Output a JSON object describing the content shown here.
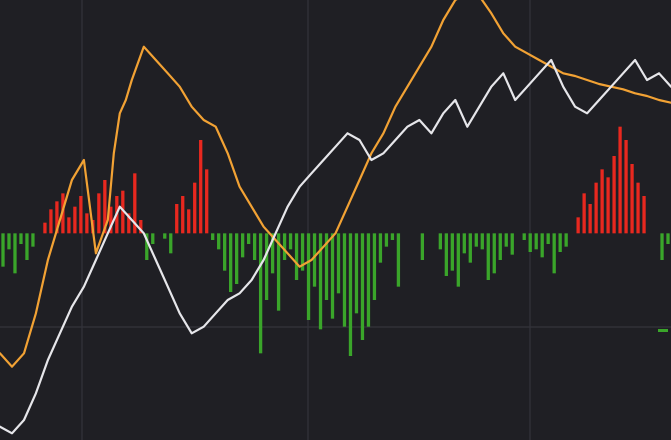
{
  "colors": {
    "background": "#1f1f24",
    "grid": "#34343b",
    "positive": "#e8281f",
    "negative": "#3aa52a",
    "orange_line": "#f2a234",
    "white_line": "#e6e6ea"
  },
  "chart_data": {
    "type": "bar",
    "title": "",
    "xlabel": "",
    "ylabel": "",
    "grid": true,
    "legend": "none",
    "x_range": [
      0,
      112
    ],
    "y_range": [
      -155,
      175
    ],
    "histogram": {
      "name": "",
      "x": [
        0,
        1,
        2,
        3,
        4,
        5,
        6,
        7,
        8,
        9,
        10,
        11,
        12,
        13,
        14,
        15,
        16,
        17,
        18,
        19,
        20,
        21,
        22,
        23,
        24,
        25,
        26,
        27,
        28,
        29,
        30,
        31,
        32,
        33,
        34,
        35,
        36,
        37,
        38,
        39,
        40,
        41,
        42,
        43,
        44,
        45,
        46,
        47,
        48,
        49,
        50,
        51,
        52,
        53,
        54,
        55,
        56,
        57,
        58,
        59,
        60,
        61,
        62,
        63,
        64,
        65,
        66,
        67,
        68,
        69,
        70,
        71,
        72,
        73,
        74,
        75,
        76,
        77,
        78,
        79,
        80,
        81,
        82,
        83,
        84,
        85,
        86,
        87,
        88,
        89,
        90,
        91,
        92,
        93,
        94,
        95,
        96,
        97,
        98,
        99,
        100,
        101,
        102,
        103,
        104,
        105,
        106,
        107,
        108,
        109,
        110,
        111
      ],
      "values": [
        -25,
        -12,
        -30,
        -8,
        -20,
        -10,
        0,
        8,
        18,
        24,
        30,
        12,
        20,
        28,
        15,
        10,
        30,
        40,
        20,
        28,
        32,
        15,
        45,
        10,
        -20,
        -8,
        0,
        -4,
        -15,
        22,
        28,
        18,
        38,
        70,
        48,
        -5,
        -12,
        -28,
        -44,
        -38,
        -18,
        -8,
        -20,
        -90,
        -50,
        -30,
        -58,
        -20,
        -12,
        -35,
        -28,
        -65,
        -40,
        -72,
        -50,
        -64,
        -45,
        -70,
        -92,
        -60,
        -80,
        -70,
        -50,
        -22,
        -10,
        -5,
        -40,
        0,
        0,
        0,
        -20,
        0,
        0,
        -12,
        -32,
        -28,
        -40,
        -15,
        -22,
        -10,
        -12,
        -35,
        -30,
        -20,
        -10,
        -16,
        0,
        -5,
        -14,
        -12,
        -18,
        -8,
        -30,
        -14,
        -10,
        0,
        12,
        30,
        22,
        38,
        48,
        42,
        58,
        80,
        70,
        52,
        38,
        28,
        0,
        0,
        -20,
        -8
      ],
      "ylim": [
        -155,
        175
      ]
    },
    "series": [
      {
        "name": "",
        "color": "#f2a234",
        "x": [
          0,
          2,
          4,
          6,
          8,
          10,
          12,
          14,
          16,
          18,
          19,
          20,
          21,
          22,
          24,
          26,
          28,
          30,
          32,
          34,
          36,
          37,
          38,
          40,
          42,
          44,
          46,
          48,
          50,
          52,
          54,
          56,
          58,
          60,
          62,
          64,
          66,
          68,
          70,
          72,
          74,
          76,
          78,
          80,
          82,
          84,
          86,
          88,
          90,
          92,
          94,
          96,
          98,
          100,
          102,
          104,
          106,
          108,
          110,
          112
        ],
        "values": [
          -90,
          -100,
          -90,
          -60,
          -20,
          10,
          40,
          55,
          -15,
          10,
          60,
          90,
          100,
          115,
          140,
          130,
          120,
          110,
          95,
          85,
          80,
          70,
          60,
          35,
          20,
          5,
          -5,
          -15,
          -25,
          -20,
          -10,
          0,
          20,
          40,
          60,
          75,
          95,
          110,
          125,
          140,
          160,
          175,
          180,
          178,
          165,
          150,
          140,
          135,
          130,
          125,
          120,
          118,
          115,
          112,
          110,
          108,
          105,
          103,
          100,
          98
        ]
      },
      {
        "name": "",
        "color": "#e6e6ea",
        "x": [
          0,
          2,
          4,
          6,
          8,
          10,
          12,
          14,
          16,
          18,
          20,
          22,
          24,
          26,
          28,
          30,
          32,
          34,
          36,
          38,
          40,
          42,
          44,
          46,
          48,
          50,
          52,
          54,
          56,
          58,
          60,
          62,
          64,
          66,
          68,
          70,
          72,
          74,
          76,
          78,
          80,
          82,
          84,
          86,
          88,
          90,
          92,
          94,
          96,
          98,
          100,
          102,
          104,
          106,
          108,
          110,
          112
        ],
        "values": [
          -145,
          -150,
          -140,
          -120,
          -95,
          -75,
          -55,
          -40,
          -20,
          0,
          20,
          10,
          0,
          -20,
          -40,
          -60,
          -75,
          -70,
          -60,
          -50,
          -45,
          -35,
          -20,
          0,
          20,
          35,
          45,
          55,
          65,
          75,
          70,
          55,
          60,
          70,
          80,
          85,
          75,
          90,
          100,
          80,
          95,
          110,
          120,
          100,
          110,
          120,
          130,
          110,
          95,
          90,
          100,
          110,
          120,
          130,
          115,
          120,
          110
        ]
      }
    ]
  }
}
